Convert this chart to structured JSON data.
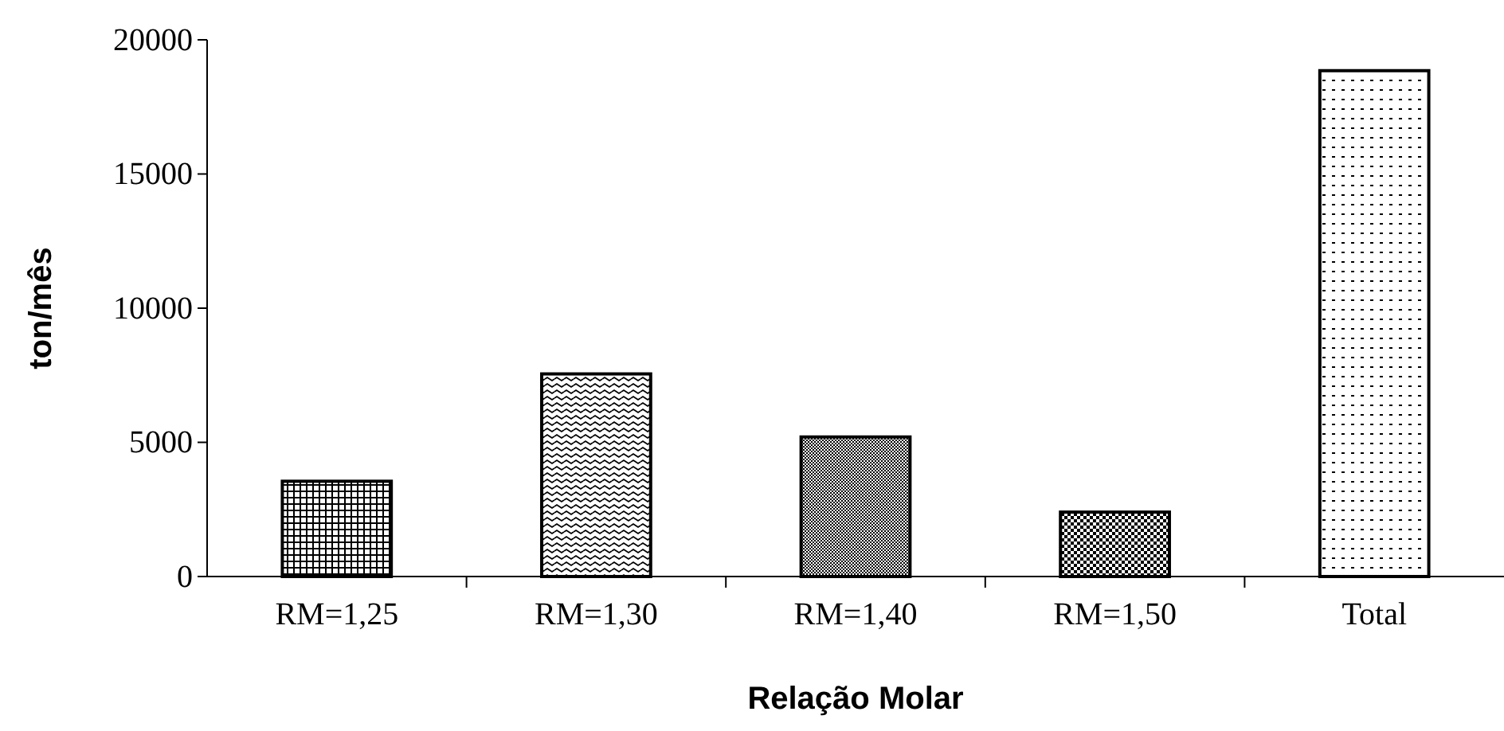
{
  "chart_data": {
    "type": "bar",
    "xlabel": "Relação Molar",
    "ylabel": "ton/mês",
    "categories": [
      "RM=1,25",
      "RM=1,30",
      "RM=1,40",
      "RM=1,50",
      "Total"
    ],
    "values": [
      3550,
      7550,
      5200,
      2400,
      18850
    ],
    "color": "#000000",
    "ylim": [
      0,
      20000
    ],
    "yticks": [
      0,
      5000,
      10000,
      15000,
      20000
    ],
    "grid": false
  }
}
